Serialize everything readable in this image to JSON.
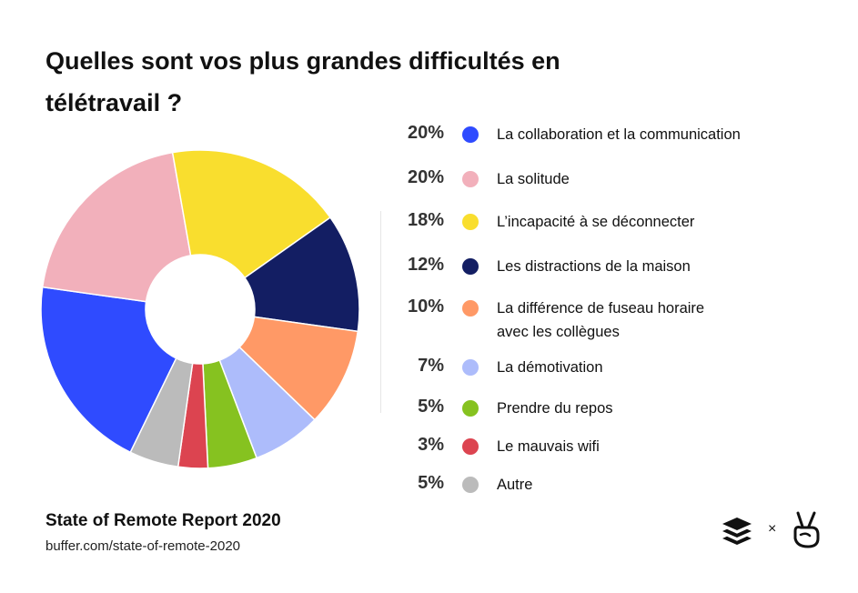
{
  "title": "Quelles sont vos plus grandes difficultés en télétravail ?",
  "chart_data": {
    "type": "pie",
    "title": "Quelles sont vos plus grandes difficultés en télétravail ?",
    "slices": [
      {
        "label": "La collaboration et la communication",
        "value": 20,
        "value_label": "20%",
        "color": "#2f4bff"
      },
      {
        "label": "La solitude",
        "value": 20,
        "value_label": "20%",
        "color": "#f2b0bb"
      },
      {
        "label": "L’incapacité à se déconnecter",
        "value": 18,
        "value_label": "18%",
        "color": "#f9de2e"
      },
      {
        "label": "Les distractions de la maison",
        "value": 12,
        "value_label": "12%",
        "color": "#131e63"
      },
      {
        "label": "La différence de fuseau horaire avec les collègues",
        "value": 10,
        "value_label": "10%",
        "color": "#ff9966"
      },
      {
        "label": "La démotivation",
        "value": 7,
        "value_label": "7%",
        "color": "#adbcfb"
      },
      {
        "label": "Prendre du repos",
        "value": 5,
        "value_label": "5%",
        "color": "#86c220"
      },
      {
        "label": "Le mauvais wifi",
        "value": 3,
        "value_label": "3%",
        "color": "#dc4450"
      },
      {
        "label": "Autre",
        "value": 5,
        "value_label": "5%",
        "color": "#bbbbbb"
      }
    ],
    "legend_position": "right"
  },
  "legend_label_lines": {
    "4": [
      "La différence de fuseau horaire",
      "avec les collègues"
    ]
  },
  "source": {
    "title": "State of Remote Report 2020",
    "url": "buffer.com/state-of-remote-2020"
  },
  "footer_logos": {
    "left_icon": "buffer-layers-icon",
    "separator": "×",
    "right_icon": "peace-hand-icon"
  }
}
